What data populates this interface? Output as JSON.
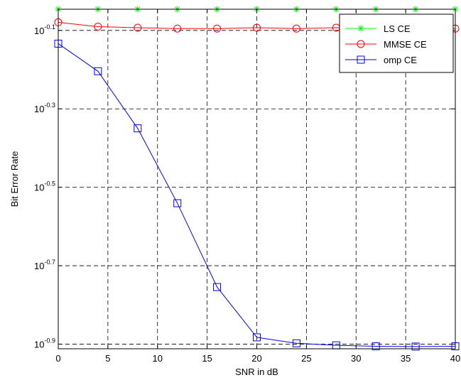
{
  "chart_data": {
    "type": "line",
    "xlabel": "SNR in dB",
    "ylabel": "Bit Error Rate",
    "x": [
      0,
      4,
      8,
      12,
      16,
      20,
      24,
      28,
      32,
      36,
      40
    ],
    "xlim": [
      0,
      40
    ],
    "xticks": [
      0,
      5,
      10,
      15,
      20,
      25,
      30,
      35,
      40
    ],
    "xtick_labels": [
      "0",
      "5",
      "10",
      "15",
      "20",
      "25",
      "30",
      "35",
      "40"
    ],
    "yscale": "log",
    "ylim": [
      0.1225,
      0.8995
    ],
    "yticks": [
      0.1259,
      0.1995,
      0.3162,
      0.5012,
      0.7943
    ],
    "ytick_labels": [
      {
        "base": "10",
        "exp": "-0.9"
      },
      {
        "base": "10",
        "exp": "-0.7"
      },
      {
        "base": "10",
        "exp": "-0.5"
      },
      {
        "base": "10",
        "exp": "-0.3"
      },
      {
        "base": "10",
        "exp": "-0.1"
      }
    ],
    "grid": true,
    "legend_position": "top-right",
    "series": [
      {
        "name": "LS CE",
        "color": "#00ff00",
        "marker": "star",
        "values": [
          0.8995,
          0.8995,
          0.8995,
          0.8995,
          0.8995,
          0.8995,
          0.8995,
          0.8995,
          0.8995,
          0.8995,
          0.8995
        ]
      },
      {
        "name": "MMSE CE",
        "color": "#ff0000",
        "marker": "circle",
        "values": [
          0.833,
          0.812,
          0.807,
          0.803,
          0.803,
          0.807,
          0.803,
          0.807,
          0.803,
          0.807,
          0.803
        ]
      },
      {
        "name": "omp CE",
        "color": "#0000ff",
        "marker": "square",
        "values": [
          0.735,
          0.625,
          0.447,
          0.288,
          0.176,
          0.131,
          0.1265,
          0.125,
          0.1243,
          0.1241,
          0.1243
        ]
      }
    ]
  }
}
